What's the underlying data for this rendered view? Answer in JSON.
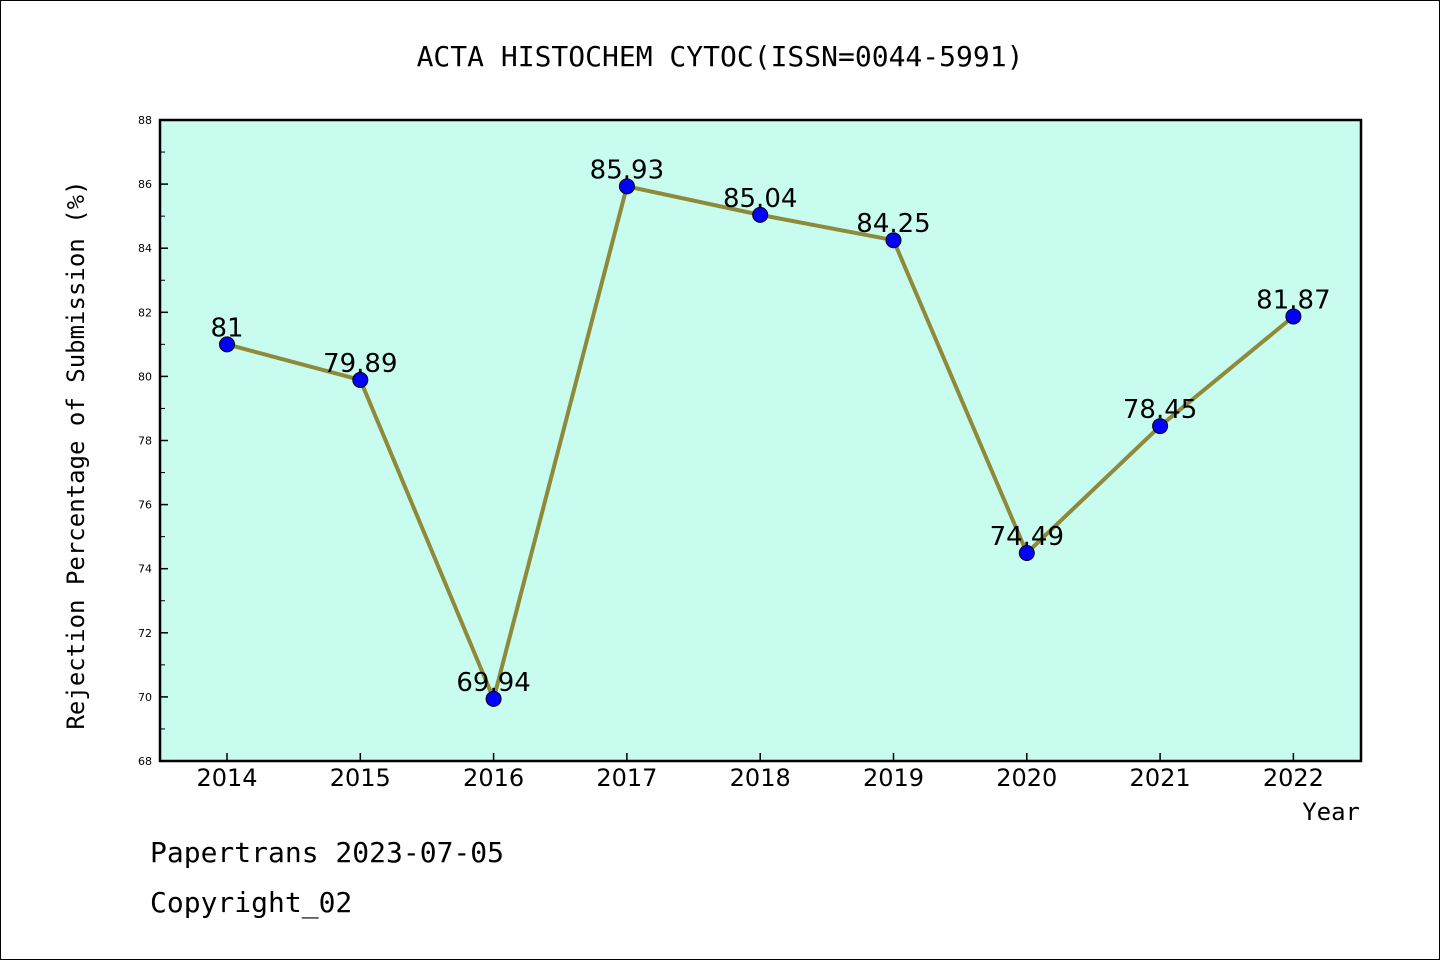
{
  "chart_data": {
    "type": "line",
    "title": "ACTA HISTOCHEM CYTOC(ISSN=0044-5991)",
    "xlabel": "Year",
    "ylabel": "Rejection Percentage of Submission (%)",
    "categories": [
      "2014",
      "2015",
      "2016",
      "2017",
      "2018",
      "2019",
      "2020",
      "2021",
      "2022"
    ],
    "values": [
      81,
      79.89,
      69.94,
      85.93,
      85.04,
      84.25,
      74.49,
      78.45,
      81.87
    ],
    "data_labels": [
      "81",
      "79.89",
      "69.94",
      "85.93",
      "85.04",
      "84.25",
      "74.49",
      "78.45",
      "81.87"
    ],
    "ylim": [
      68,
      88
    ],
    "yticks": [
      "68",
      "70",
      "72",
      "74",
      "76",
      "78",
      "80",
      "82",
      "84",
      "86",
      "88"
    ],
    "grid": false,
    "legend": "none",
    "colors": {
      "plot_background": "#c8fcee",
      "line": "#8f8a3a",
      "marker": "#0000ff"
    }
  },
  "footer": {
    "line1": "Papertrans 2023-07-05",
    "line2": "Copyright_02"
  }
}
